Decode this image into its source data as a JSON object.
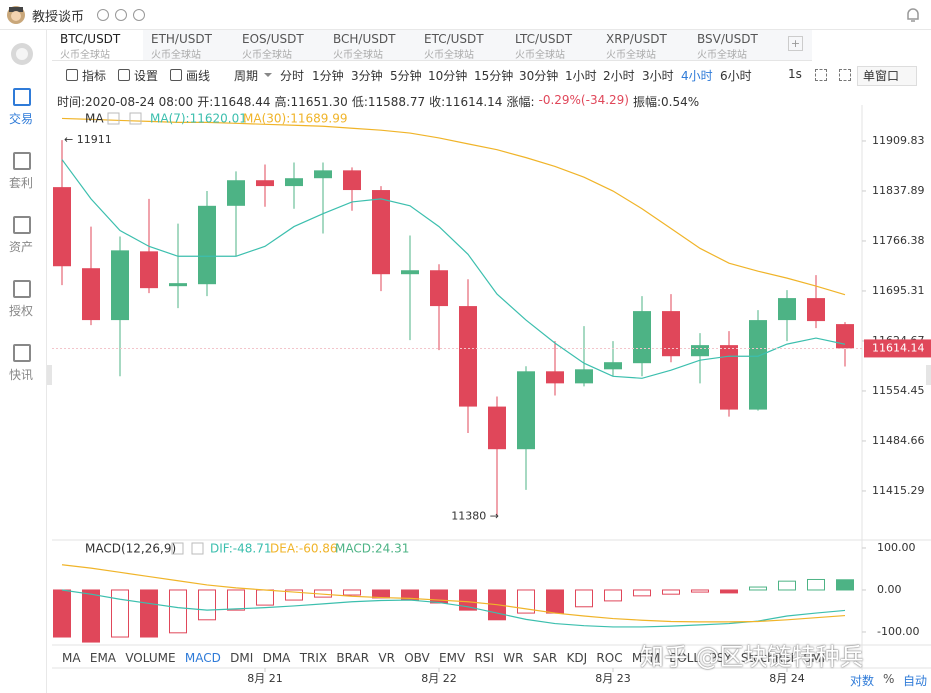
{
  "header": {
    "title": "教授谈币"
  },
  "sidebar": [
    "交易",
    "套利",
    "资产",
    "授权",
    "快讯"
  ],
  "tabs": [
    {
      "pair": "BTC/USDT",
      "exchange": "火币全球站"
    },
    {
      "pair": "ETH/USDT",
      "exchange": "火币全球站"
    },
    {
      "pair": "EOS/USDT",
      "exchange": "火币全球站"
    },
    {
      "pair": "BCH/USDT",
      "exchange": "火币全球站"
    },
    {
      "pair": "ETC/USDT",
      "exchange": "火币全球站"
    },
    {
      "pair": "LTC/USDT",
      "exchange": "火币全球站"
    },
    {
      "pair": "XRP/USDT",
      "exchange": "火币全球站"
    },
    {
      "pair": "BSV/USDT",
      "exchange": "火币全球站"
    }
  ],
  "toolbar": {
    "tools": [
      "指标",
      "设置",
      "画线"
    ],
    "period": "周期",
    "intervals": [
      "分时",
      "1分钟",
      "3分钟",
      "5分钟",
      "10分钟",
      "15分钟",
      "30分钟",
      "1小时",
      "2小时",
      "3小时",
      "4小时",
      "6小时"
    ],
    "active_interval": "4小时",
    "refresh": "1s",
    "window": "单窗口"
  },
  "info": [
    "时间:2020-08-24 08:00",
    "开:11648.44",
    "高:11651.30",
    "低:11588.77",
    "收:11614.14",
    "涨幅:",
    "-0.29%(-34.29)",
    "振幅:0.54%"
  ],
  "indicators": [
    "MA",
    "EMA",
    "VOLUME",
    "MACD",
    "DMI",
    "DMA",
    "TRIX",
    "BRAR",
    "VR",
    "OBV",
    "EMV",
    "RSI",
    "WR",
    "SAR",
    "KDJ",
    "ROC",
    "MTM",
    "BOLL",
    "PSY",
    "StochRSI",
    "SMI"
  ],
  "active_indicator": "MACD",
  "axis_options": [
    "对数",
    "%",
    "自动"
  ],
  "watermark": "知乎 @区块链特种兵",
  "chart_data": [
    {
      "type": "candlestick",
      "legend_title": "MA",
      "log_scale": true,
      "up_color": "#4db385",
      "down_color": "#e0475a",
      "categories": [
        null,
        null,
        null,
        null,
        null,
        null,
        null,
        "8月 21",
        null,
        null,
        null,
        null,
        null,
        "8月 22",
        null,
        null,
        null,
        null,
        null,
        "8月 23",
        null,
        null,
        null,
        null,
        null,
        "8月 24",
        null,
        null
      ],
      "open": [
        11843.4,
        11727.6,
        11654.1,
        11751.6,
        11702.1,
        11704.9,
        11816.6,
        11853.3,
        11844.9,
        11856.2,
        11867.5,
        11839.2,
        11719.1,
        11724.7,
        11673.9,
        11532.6,
        11473.2,
        11582.0,
        11565.1,
        11584.8,
        11593.4,
        11666.8,
        11603.2,
        11618.8,
        11528.4,
        11654.1,
        11685.2,
        11648.44
      ],
      "high": [
        11911,
        11786.9,
        11772.8,
        11826.5,
        11791.2,
        11837.8,
        11866.1,
        11875.9,
        11878.8,
        11878.8,
        11871.7,
        11844.9,
        11774.2,
        11733.2,
        11712.0,
        11546.7,
        11589.1,
        11624.4,
        11645.6,
        11624.4,
        11688.0,
        11690.8,
        11635.7,
        11638.5,
        11668.2,
        11696.5,
        11717.7,
        11651.3
      ],
      "low": [
        11703.6,
        11647.0,
        11575.0,
        11692.2,
        11671.1,
        11688.0,
        11744.5,
        11815.2,
        11812.4,
        11777.1,
        11809.5,
        11695.1,
        11625.8,
        11611.7,
        11495.8,
        11380,
        11416.7,
        11548.1,
        11560.8,
        11575.0,
        11575.0,
        11594.8,
        11565.1,
        11518.5,
        11527.0,
        11624.4,
        11642.8,
        11588.77
      ],
      "close": [
        11730.4,
        11654.1,
        11753.0,
        11699.3,
        11706.4,
        11816.6,
        11853.3,
        11844.9,
        11856.2,
        11867.5,
        11839.2,
        11719.1,
        11724.7,
        11673.9,
        11532.6,
        11473.2,
        11582.0,
        11565.1,
        11584.8,
        11594.8,
        11666.8,
        11603.2,
        11618.8,
        11528.4,
        11654.1,
        11685.2,
        11652.7,
        11614.14
      ],
      "series": [
        {
          "name": "MA(7):11620.01",
          "color": "#3cbfae",
          "values": [
            11883.0,
            11826.5,
            11781.3,
            11758.7,
            11744.6,
            11744.6,
            11744.6,
            11758.7,
            11786.9,
            11805.3,
            11822.2,
            11826.5,
            11816.6,
            11786.9,
            11747.4,
            11690.9,
            11654.1,
            11621.6,
            11593.4,
            11575.0,
            11572.2,
            11583.5,
            11597.6,
            11603.2,
            11603.2,
            11620.2,
            11628.7,
            11620.01
          ]
        },
        {
          "name": "MA(30):11689.99",
          "color": "#f0b429",
          "values": [
            11942.4,
            11941.0,
            11939.5,
            11938.1,
            11936.7,
            11936.7,
            11935.3,
            11933.9,
            11932.5,
            11931.1,
            11928.2,
            11925.4,
            11921.2,
            11914.2,
            11905.6,
            11897.2,
            11885.8,
            11873.1,
            11857.6,
            11837.8,
            11812.4,
            11784.1,
            11755.9,
            11734.7,
            11723.4,
            11713.5,
            11702.2,
            11689.99
          ]
        }
      ],
      "ylim": [
        11350.4,
        11954.6
      ],
      "yticks": [
        11909.83,
        11837.89,
        11766.38,
        11695.31,
        11624.67,
        11554.45,
        11484.66,
        11415.29
      ],
      "last_price": 11614.14,
      "high_label": {
        "value": 11911,
        "label": "← 11911"
      },
      "low_label": {
        "value": 11380,
        "label": "11380 →"
      }
    },
    {
      "type": "macd",
      "title": "MACD(12,26,9)",
      "negative_color": "#e0475a",
      "series": [
        {
          "name": "MACD:24.31",
          "color": "#4db385",
          "values": [
            -112,
            -124,
            -112,
            -112,
            -102,
            -71,
            -48,
            -36,
            -24,
            -17,
            -12,
            -19,
            -24,
            -31,
            -48,
            -71,
            -55,
            -55,
            -40,
            -26,
            -14,
            -10,
            -5,
            -7,
            7,
            21,
            25,
            24.31
          ]
        },
        {
          "name": "DIF:-48.71",
          "color": "#3cbfae",
          "values": [
            0,
            -10,
            -22,
            -32,
            -42,
            -48,
            -45,
            -42,
            -38,
            -33,
            -28,
            -25,
            -24,
            -30,
            -40,
            -55,
            -70,
            -80,
            -85,
            -88,
            -88,
            -86,
            -83,
            -80,
            -74,
            -62,
            -55,
            -48.71
          ]
        },
        {
          "name": "DEA:-60.86",
          "color": "#f0b429",
          "values": [
            60,
            52,
            42,
            32,
            22,
            12,
            5,
            0,
            -5,
            -10,
            -15,
            -18,
            -20,
            -24,
            -28,
            -35,
            -45,
            -55,
            -62,
            -68,
            -72,
            -75,
            -76,
            -76,
            -75,
            -71,
            -66,
            -60.86
          ]
        }
      ],
      "ylim": [
        -131,
        119
      ],
      "yticks": [
        {
          "value": 100,
          "label": "100.00"
        },
        {
          "value": 0,
          "label": "0.00"
        },
        {
          "value": -100,
          "label": "-100.00"
        }
      ]
    }
  ]
}
